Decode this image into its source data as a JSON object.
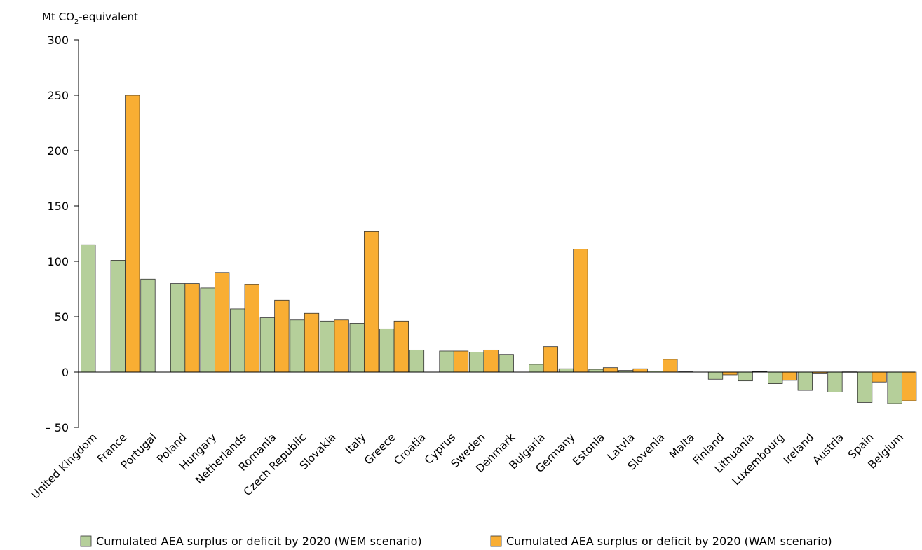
{
  "chart_data": {
    "type": "bar",
    "ylabel_prefix": "Mt CO",
    "ylabel_sub": "2",
    "ylabel_suffix": "-equivalent",
    "ylim": [
      -50,
      300
    ],
    "yticks": [
      -50,
      0,
      50,
      100,
      150,
      200,
      250,
      300
    ],
    "ytick_labels": [
      "– 50",
      "0",
      "50",
      "100",
      "150",
      "200",
      "250",
      "300"
    ],
    "grid": false,
    "legend_position": "bottom",
    "categories": [
      "United Kingdom",
      "France",
      "Portugal",
      "Poland",
      "Hungary",
      "Netherlands",
      "Romania",
      "Czech Republic",
      "Slovakia",
      "Italy",
      "Greece",
      "Croatia",
      "Cyprus",
      "Sweden",
      "Denmark",
      "Bulgaria",
      "Germany",
      "Estonia",
      "Latvia",
      "Slovenia",
      "Malta",
      "Finland",
      "Lithuania",
      "Luxembourg",
      "Ireland",
      "Austria",
      "Spain",
      "Belgium"
    ],
    "series": [
      {
        "name": "Cumulated AEA surplus or deficit by 2020 (WEM scenario)",
        "color": "#b5cf9a",
        "values": [
          115,
          101,
          84,
          80,
          76,
          57,
          49,
          47,
          46,
          44,
          39,
          20,
          19,
          18,
          16,
          7,
          3,
          2.5,
          1.5,
          1,
          0.3,
          -6.5,
          -8,
          -10.5,
          -16.5,
          -18,
          -27.5,
          -28.5
        ]
      },
      {
        "name": "Cumulated AEA surplus or deficit by 2020 (WAM scenario)",
        "color": "#f9ae33",
        "values": [
          null,
          250,
          null,
          80,
          90,
          79,
          65,
          53,
          47,
          127,
          46,
          null,
          19,
          20,
          null,
          23,
          111,
          4,
          3,
          11.5,
          null,
          -2.5,
          0.5,
          -7.5,
          -1.5,
          0.2,
          -9,
          -26
        ]
      }
    ]
  }
}
